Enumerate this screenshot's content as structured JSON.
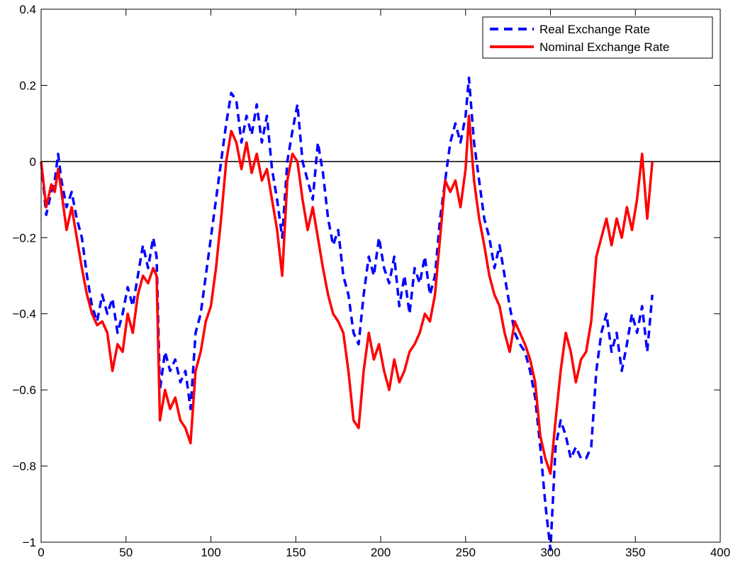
{
  "chart_data": {
    "type": "line",
    "title": "",
    "xlabel": "",
    "ylabel": "",
    "xlim": [
      0,
      400
    ],
    "ylim": [
      -1,
      0.4
    ],
    "xticks": [
      0,
      50,
      100,
      150,
      200,
      250,
      300,
      350,
      400
    ],
    "yticks": [
      -1,
      -0.8,
      -0.6,
      -0.4,
      -0.2,
      0,
      0.2,
      0.4
    ],
    "xtick_labels": [
      "0",
      "50",
      "100",
      "150",
      "200",
      "250",
      "300",
      "350",
      "400"
    ],
    "ytick_labels": [
      "−1",
      "−0.8",
      "−0.6",
      "−0.4",
      "−0.2",
      "0",
      "0.2",
      "0.4"
    ],
    "grid": false,
    "legend": {
      "placement": "top-right"
    },
    "reference_line": {
      "y": 0,
      "color": "#000000"
    },
    "series": [
      {
        "name": "Real Exchange Rate",
        "color": "#0000ff",
        "style": "dashed",
        "x": [
          0,
          3,
          6,
          8,
          10,
          12,
          15,
          18,
          21,
          24,
          27,
          30,
          33,
          36,
          39,
          42,
          45,
          48,
          51,
          54,
          57,
          60,
          63,
          66,
          68,
          70,
          73,
          76,
          79,
          82,
          85,
          88,
          91,
          94,
          97,
          100,
          103,
          106,
          109,
          112,
          115,
          118,
          121,
          124,
          127,
          130,
          133,
          136,
          139,
          142,
          145,
          148,
          151,
          154,
          157,
          160,
          163,
          166,
          169,
          172,
          175,
          178,
          181,
          184,
          187,
          190,
          193,
          196,
          199,
          202,
          205,
          208,
          211,
          214,
          217,
          220,
          223,
          226,
          229,
          232,
          235,
          238,
          241,
          244,
          247,
          250,
          252,
          255,
          258,
          261,
          264,
          267,
          270,
          273,
          276,
          279,
          282,
          285,
          288,
          291,
          294,
          297,
          300,
          303,
          306,
          309,
          312,
          315,
          318,
          321,
          324,
          327,
          330,
          333,
          336,
          339,
          342,
          345,
          348,
          351,
          354,
          357,
          360
        ],
        "values": [
          0.0,
          -0.14,
          -0.08,
          -0.05,
          0.02,
          -0.05,
          -0.12,
          -0.08,
          -0.15,
          -0.2,
          -0.3,
          -0.38,
          -0.42,
          -0.35,
          -0.4,
          -0.36,
          -0.45,
          -0.4,
          -0.33,
          -0.38,
          -0.3,
          -0.22,
          -0.28,
          -0.2,
          -0.25,
          -0.6,
          -0.5,
          -0.55,
          -0.52,
          -0.58,
          -0.55,
          -0.65,
          -0.45,
          -0.4,
          -0.3,
          -0.2,
          -0.1,
          0.0,
          0.1,
          0.18,
          0.16,
          0.05,
          0.12,
          0.07,
          0.15,
          0.05,
          0.12,
          -0.02,
          -0.1,
          -0.2,
          0.0,
          0.08,
          0.15,
          0.0,
          -0.05,
          -0.1,
          0.05,
          -0.03,
          -0.15,
          -0.22,
          -0.18,
          -0.3,
          -0.35,
          -0.45,
          -0.48,
          -0.35,
          -0.25,
          -0.3,
          -0.2,
          -0.28,
          -0.32,
          -0.25,
          -0.38,
          -0.3,
          -0.4,
          -0.28,
          -0.32,
          -0.25,
          -0.35,
          -0.3,
          -0.15,
          -0.05,
          0.05,
          0.1,
          0.05,
          0.12,
          0.22,
          0.05,
          -0.05,
          -0.15,
          -0.2,
          -0.28,
          -0.22,
          -0.3,
          -0.38,
          -0.45,
          -0.48,
          -0.5,
          -0.55,
          -0.62,
          -0.75,
          -0.9,
          -1.02,
          -0.75,
          -0.68,
          -0.72,
          -0.78,
          -0.75,
          -0.78,
          -0.78,
          -0.75,
          -0.55,
          -0.45,
          -0.4,
          -0.5,
          -0.45,
          -0.55,
          -0.48,
          -0.4,
          -0.45,
          -0.38,
          -0.5,
          -0.35
        ]
      },
      {
        "name": "Nominal Exchange Rate",
        "color": "#ff0000",
        "style": "solid",
        "x": [
          0,
          3,
          6,
          8,
          10,
          12,
          15,
          18,
          21,
          24,
          27,
          30,
          33,
          36,
          39,
          42,
          45,
          48,
          51,
          54,
          57,
          60,
          63,
          66,
          68,
          70,
          73,
          76,
          79,
          82,
          85,
          88,
          91,
          94,
          97,
          100,
          103,
          106,
          109,
          112,
          115,
          118,
          121,
          124,
          127,
          130,
          133,
          136,
          139,
          142,
          145,
          148,
          151,
          154,
          157,
          160,
          163,
          166,
          169,
          172,
          175,
          178,
          181,
          184,
          187,
          190,
          193,
          196,
          199,
          202,
          205,
          208,
          211,
          214,
          217,
          220,
          223,
          226,
          229,
          232,
          235,
          238,
          241,
          244,
          247,
          250,
          252,
          255,
          258,
          261,
          264,
          267,
          270,
          273,
          276,
          279,
          282,
          285,
          288,
          291,
          294,
          297,
          300,
          303,
          306,
          309,
          312,
          315,
          318,
          321,
          324,
          327,
          330,
          333,
          336,
          339,
          342,
          345,
          348,
          351,
          354,
          357,
          360
        ],
        "values": [
          0.0,
          -0.12,
          -0.06,
          -0.08,
          -0.02,
          -0.08,
          -0.18,
          -0.12,
          -0.2,
          -0.28,
          -0.35,
          -0.4,
          -0.43,
          -0.42,
          -0.45,
          -0.55,
          -0.48,
          -0.5,
          -0.4,
          -0.45,
          -0.35,
          -0.3,
          -0.32,
          -0.28,
          -0.3,
          -0.68,
          -0.6,
          -0.65,
          -0.62,
          -0.68,
          -0.7,
          -0.74,
          -0.55,
          -0.5,
          -0.42,
          -0.38,
          -0.28,
          -0.15,
          0.0,
          0.08,
          0.05,
          -0.02,
          0.05,
          -0.03,
          0.02,
          -0.05,
          -0.02,
          -0.1,
          -0.18,
          -0.3,
          -0.05,
          0.02,
          0.0,
          -0.1,
          -0.18,
          -0.12,
          -0.2,
          -0.28,
          -0.35,
          -0.4,
          -0.42,
          -0.45,
          -0.55,
          -0.68,
          -0.7,
          -0.55,
          -0.45,
          -0.52,
          -0.48,
          -0.55,
          -0.6,
          -0.52,
          -0.58,
          -0.55,
          -0.5,
          -0.48,
          -0.45,
          -0.4,
          -0.42,
          -0.35,
          -0.2,
          -0.05,
          -0.08,
          -0.05,
          -0.12,
          -0.02,
          0.12,
          -0.05,
          -0.15,
          -0.22,
          -0.3,
          -0.35,
          -0.38,
          -0.45,
          -0.5,
          -0.42,
          -0.45,
          -0.48,
          -0.52,
          -0.58,
          -0.72,
          -0.78,
          -0.82,
          -0.68,
          -0.55,
          -0.45,
          -0.5,
          -0.58,
          -0.52,
          -0.5,
          -0.42,
          -0.25,
          -0.2,
          -0.15,
          -0.22,
          -0.15,
          -0.2,
          -0.12,
          -0.18,
          -0.1,
          0.02,
          -0.15,
          0.0
        ]
      }
    ]
  }
}
